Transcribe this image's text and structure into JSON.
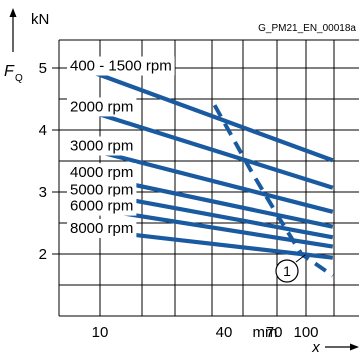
{
  "chart_data": {
    "type": "line",
    "figure_id": "G_PM21_EN_00018a",
    "y_unit": "kN",
    "y_symbol": "F",
    "y_symbol_sub": "Q",
    "x_unit": "mm",
    "x_symbol": "x",
    "x_scale": "log",
    "x_ticks": [
      10,
      40,
      70,
      100
    ],
    "x_tick_labels": [
      "10",
      "40",
      "70",
      "100"
    ],
    "y_ticks": [
      2,
      3,
      4,
      5
    ],
    "y_tick_labels": [
      "2",
      "3",
      "4",
      "5"
    ],
    "ylim": [
      1.0,
      5.9
    ],
    "grid": true,
    "series": [
      {
        "name": "400 - 1500 rpm",
        "x": [
          7.5,
          135
        ],
        "y": [
          5.04,
          3.51
        ]
      },
      {
        "name": "2000 rpm",
        "x": [
          7.5,
          135
        ],
        "y": [
          4.38,
          3.07
        ]
      },
      {
        "name": "3000 rpm",
        "x": [
          7.5,
          135
        ],
        "y": [
          3.75,
          2.68
        ]
      },
      {
        "name": "4000 rpm",
        "x": [
          7.5,
          135
        ],
        "y": [
          3.32,
          2.44
        ]
      },
      {
        "name": "5000 rpm",
        "x": [
          7.5,
          135
        ],
        "y": [
          3.04,
          2.27
        ]
      },
      {
        "name": "6000 rpm",
        "x": [
          7.5,
          135
        ],
        "y": [
          2.78,
          2.12
        ]
      },
      {
        "name": "8000 rpm",
        "x": [
          7.5,
          135
        ],
        "y": [
          2.42,
          1.94
        ]
      }
    ],
    "limit_curve": {
      "label": "1",
      "x": [
        36,
        55,
        75,
        95,
        135
      ],
      "y": [
        4.4,
        3.3,
        2.55,
        2.0,
        1.65
      ]
    }
  },
  "colors": {
    "curve": "#1a5aa0",
    "grid": "#000000",
    "panel": "#ffffff",
    "page": "#ffffff"
  }
}
